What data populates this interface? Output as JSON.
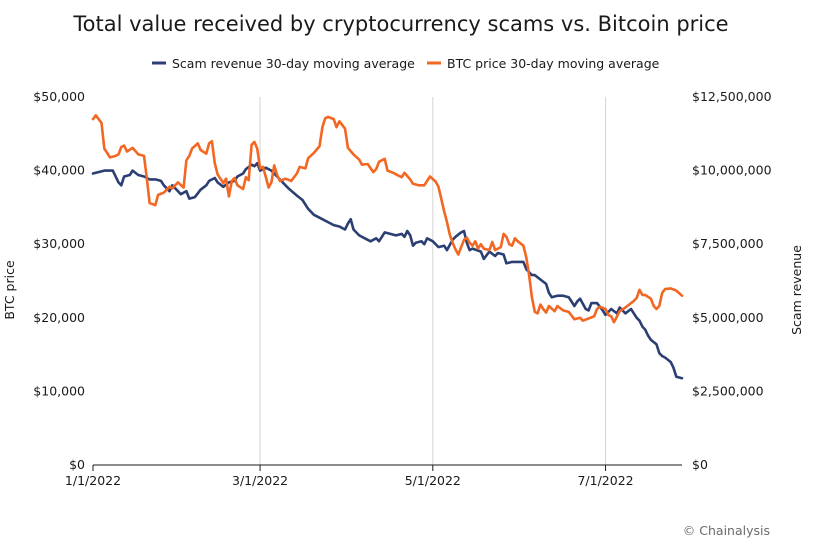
{
  "chart_data": {
    "type": "line",
    "title": "Total value received by cryptocurrency scams vs. Bitcoin price",
    "credit": "© Chainalysis",
    "left_axis": {
      "label": "BTC price",
      "range": [
        0,
        50000
      ],
      "ticks": [
        0,
        10000,
        20000,
        30000,
        40000,
        50000
      ],
      "tick_labels": [
        "$0",
        "$10,000",
        "$20,000",
        "$30,000",
        "$40,000",
        "$50,000"
      ]
    },
    "right_axis": {
      "label": "Scam revenue",
      "range": [
        0,
        12500000
      ],
      "ticks": [
        0,
        2500000,
        5000000,
        7500000,
        10000000,
        12500000
      ],
      "tick_labels": [
        "$0",
        "$2,500,000",
        "$5,000,000",
        "$7,500,000",
        "$10,000,000",
        "$12,500,000"
      ]
    },
    "x_axis": {
      "range_days": [
        0,
        208
      ],
      "ticks": [
        0,
        59,
        120,
        181
      ],
      "tick_labels": [
        "1/1/2022",
        "3/1/2022",
        "5/1/2022",
        "7/1/2022"
      ]
    },
    "grid": "vertical at date ticks",
    "legend_position": "top-center",
    "series": [
      {
        "name": "Scam revenue 30-day moving average",
        "axis": "right",
        "color": "#2b3f73",
        "points": [
          [
            0,
            9900000
          ],
          [
            4,
            10000000
          ],
          [
            7,
            10000000
          ],
          [
            9,
            9600000
          ],
          [
            10,
            9500000
          ],
          [
            11,
            9800000
          ],
          [
            13,
            9850000
          ],
          [
            14,
            10000000
          ],
          [
            16,
            9850000
          ],
          [
            18,
            9800000
          ],
          [
            20,
            9700000
          ],
          [
            22,
            9700000
          ],
          [
            24,
            9650000
          ],
          [
            25,
            9500000
          ],
          [
            27,
            9300000
          ],
          [
            28,
            9500000
          ],
          [
            30,
            9300000
          ],
          [
            31,
            9200000
          ],
          [
            33,
            9300000
          ],
          [
            34,
            9050000
          ],
          [
            36,
            9100000
          ],
          [
            38,
            9350000
          ],
          [
            40,
            9500000
          ],
          [
            41,
            9650000
          ],
          [
            43,
            9750000
          ],
          [
            44,
            9600000
          ],
          [
            46,
            9450000
          ],
          [
            48,
            9600000
          ],
          [
            50,
            9650000
          ],
          [
            51,
            9800000
          ],
          [
            53,
            9900000
          ],
          [
            54,
            10050000
          ],
          [
            56,
            10200000
          ],
          [
            57,
            10150000
          ],
          [
            58,
            10250000
          ],
          [
            59,
            10000000
          ],
          [
            61,
            10100000
          ],
          [
            63,
            10000000
          ],
          [
            65,
            9800000
          ],
          [
            67,
            9600000
          ],
          [
            69,
            9400000
          ],
          [
            72,
            9150000
          ],
          [
            74,
            9000000
          ],
          [
            76,
            8700000
          ],
          [
            78,
            8500000
          ],
          [
            80,
            8400000
          ],
          [
            83,
            8250000
          ],
          [
            85,
            8150000
          ],
          [
            87,
            8100000
          ],
          [
            89,
            8000000
          ],
          [
            90,
            8200000
          ],
          [
            91,
            8350000
          ],
          [
            92,
            8000000
          ],
          [
            94,
            7800000
          ],
          [
            96,
            7700000
          ],
          [
            98,
            7600000
          ],
          [
            100,
            7700000
          ],
          [
            101,
            7600000
          ],
          [
            103,
            7900000
          ],
          [
            105,
            7850000
          ],
          [
            107,
            7800000
          ],
          [
            109,
            7850000
          ],
          [
            110,
            7750000
          ],
          [
            111,
            7950000
          ],
          [
            112,
            7800000
          ],
          [
            113,
            7450000
          ],
          [
            114,
            7550000
          ],
          [
            116,
            7600000
          ],
          [
            117,
            7500000
          ],
          [
            118,
            7700000
          ],
          [
            120,
            7600000
          ],
          [
            122,
            7400000
          ],
          [
            124,
            7450000
          ],
          [
            125,
            7300000
          ],
          [
            127,
            7650000
          ],
          [
            128,
            7750000
          ],
          [
            130,
            7900000
          ],
          [
            131,
            7950000
          ],
          [
            132,
            7550000
          ],
          [
            133,
            7300000
          ],
          [
            134,
            7350000
          ],
          [
            137,
            7250000
          ],
          [
            138,
            7000000
          ],
          [
            140,
            7250000
          ],
          [
            142,
            7100000
          ],
          [
            143,
            7200000
          ],
          [
            145,
            7150000
          ],
          [
            146,
            6850000
          ],
          [
            148,
            6900000
          ],
          [
            150,
            6900000
          ],
          [
            152,
            6900000
          ],
          [
            153,
            6650000
          ],
          [
            155,
            6450000
          ],
          [
            156,
            6450000
          ],
          [
            158,
            6300000
          ],
          [
            160,
            6150000
          ],
          [
            161,
            5850000
          ],
          [
            162,
            5700000
          ],
          [
            164,
            5750000
          ],
          [
            166,
            5750000
          ],
          [
            168,
            5700000
          ],
          [
            169,
            5550000
          ],
          [
            170,
            5400000
          ],
          [
            171,
            5550000
          ],
          [
            172,
            5650000
          ],
          [
            174,
            5300000
          ],
          [
            175,
            5250000
          ],
          [
            176,
            5500000
          ],
          [
            178,
            5500000
          ],
          [
            180,
            5250000
          ],
          [
            181,
            5100000
          ],
          [
            183,
            5300000
          ],
          [
            185,
            5150000
          ],
          [
            186,
            5350000
          ],
          [
            188,
            5150000
          ],
          [
            190,
            5300000
          ],
          [
            192,
            5000000
          ],
          [
            193,
            4900000
          ],
          [
            194,
            4700000
          ],
          [
            195,
            4600000
          ],
          [
            196,
            4400000
          ],
          [
            197,
            4250000
          ],
          [
            199,
            4100000
          ],
          [
            200,
            3800000
          ],
          [
            201,
            3700000
          ],
          [
            202,
            3650000
          ],
          [
            204,
            3500000
          ],
          [
            205,
            3300000
          ],
          [
            206,
            3000000
          ],
          [
            208,
            2950000
          ]
        ]
      },
      {
        "name": "BTC price 30-day moving average",
        "axis": "left",
        "color": "#f26722",
        "points": [
          [
            0,
            47000
          ],
          [
            1,
            47500
          ],
          [
            3,
            46500
          ],
          [
            4,
            43000
          ],
          [
            6,
            41800
          ],
          [
            8,
            42000
          ],
          [
            9,
            42200
          ],
          [
            10,
            43200
          ],
          [
            11,
            43400
          ],
          [
            12,
            42600
          ],
          [
            14,
            43100
          ],
          [
            16,
            42200
          ],
          [
            18,
            42000
          ],
          [
            19,
            39000
          ],
          [
            20,
            35600
          ],
          [
            22,
            35300
          ],
          [
            23,
            36700
          ],
          [
            25,
            37000
          ],
          [
            27,
            37800
          ],
          [
            28,
            37600
          ],
          [
            30,
            38400
          ],
          [
            32,
            37700
          ],
          [
            33,
            41400
          ],
          [
            34,
            42000
          ],
          [
            35,
            43000
          ],
          [
            37,
            43700
          ],
          [
            38,
            42800
          ],
          [
            40,
            42300
          ],
          [
            41,
            43700
          ],
          [
            42,
            44000
          ],
          [
            43,
            41000
          ],
          [
            44,
            39500
          ],
          [
            46,
            38300
          ],
          [
            47,
            38900
          ],
          [
            48,
            36500
          ],
          [
            49,
            38600
          ],
          [
            50,
            39000
          ],
          [
            51,
            38000
          ],
          [
            53,
            37500
          ],
          [
            54,
            39100
          ],
          [
            55,
            38700
          ],
          [
            56,
            43500
          ],
          [
            57,
            43900
          ],
          [
            58,
            43000
          ],
          [
            59,
            40300
          ],
          [
            60,
            40500
          ],
          [
            61,
            39200
          ],
          [
            62,
            37700
          ],
          [
            63,
            38400
          ],
          [
            64,
            40700
          ],
          [
            65,
            39400
          ],
          [
            66,
            38600
          ],
          [
            68,
            38900
          ],
          [
            70,
            38600
          ],
          [
            72,
            39600
          ],
          [
            73,
            40500
          ],
          [
            75,
            40300
          ],
          [
            76,
            41700
          ],
          [
            78,
            42400
          ],
          [
            80,
            43300
          ],
          [
            81,
            45900
          ],
          [
            82,
            47100
          ],
          [
            83,
            47300
          ],
          [
            85,
            47000
          ],
          [
            86,
            45900
          ],
          [
            87,
            46700
          ],
          [
            89,
            45700
          ],
          [
            90,
            43100
          ],
          [
            92,
            42200
          ],
          [
            94,
            41500
          ],
          [
            95,
            40800
          ],
          [
            97,
            40900
          ],
          [
            99,
            39800
          ],
          [
            100,
            40200
          ],
          [
            101,
            41200
          ],
          [
            103,
            41600
          ],
          [
            104,
            40000
          ],
          [
            106,
            39700
          ],
          [
            108,
            39300
          ],
          [
            109,
            39100
          ],
          [
            110,
            39700
          ],
          [
            112,
            38800
          ],
          [
            113,
            38200
          ],
          [
            115,
            38000
          ],
          [
            117,
            38000
          ],
          [
            118,
            38600
          ],
          [
            119,
            39200
          ],
          [
            121,
            38500
          ],
          [
            122,
            37800
          ],
          [
            124,
            34500
          ],
          [
            125,
            33000
          ],
          [
            126,
            31300
          ],
          [
            127,
            30200
          ],
          [
            128,
            29300
          ],
          [
            129,
            28600
          ],
          [
            131,
            30600
          ],
          [
            132,
            30900
          ],
          [
            133,
            30200
          ],
          [
            134,
            29800
          ],
          [
            135,
            30400
          ],
          [
            136,
            29400
          ],
          [
            137,
            30000
          ],
          [
            138,
            29400
          ],
          [
            140,
            29200
          ],
          [
            141,
            30300
          ],
          [
            142,
            29200
          ],
          [
            144,
            29600
          ],
          [
            145,
            31400
          ],
          [
            146,
            31000
          ],
          [
            147,
            30000
          ],
          [
            148,
            29800
          ],
          [
            149,
            30800
          ],
          [
            150,
            30400
          ],
          [
            152,
            29800
          ],
          [
            153,
            28200
          ],
          [
            154,
            25800
          ],
          [
            155,
            22800
          ],
          [
            156,
            20800
          ],
          [
            157,
            20600
          ],
          [
            158,
            21800
          ],
          [
            159,
            21200
          ],
          [
            160,
            20700
          ],
          [
            161,
            21600
          ],
          [
            163,
            20900
          ],
          [
            164,
            21600
          ],
          [
            166,
            21000
          ],
          [
            168,
            20800
          ],
          [
            169,
            20300
          ],
          [
            170,
            19800
          ],
          [
            172,
            20000
          ],
          [
            173,
            19600
          ],
          [
            175,
            19900
          ],
          [
            177,
            20200
          ],
          [
            178,
            21200
          ],
          [
            179,
            21500
          ],
          [
            181,
            21200
          ],
          [
            182,
            20400
          ],
          [
            183,
            20200
          ],
          [
            184,
            19400
          ],
          [
            186,
            20900
          ],
          [
            188,
            21400
          ],
          [
            190,
            22000
          ],
          [
            191,
            22300
          ],
          [
            192,
            22700
          ],
          [
            193,
            23800
          ],
          [
            194,
            23100
          ],
          [
            195,
            23100
          ],
          [
            197,
            22600
          ],
          [
            198,
            21600
          ],
          [
            199,
            21200
          ],
          [
            200,
            21600
          ],
          [
            201,
            23400
          ],
          [
            202,
            23900
          ],
          [
            204,
            24000
          ],
          [
            206,
            23700
          ],
          [
            208,
            23000
          ]
        ]
      }
    ]
  }
}
